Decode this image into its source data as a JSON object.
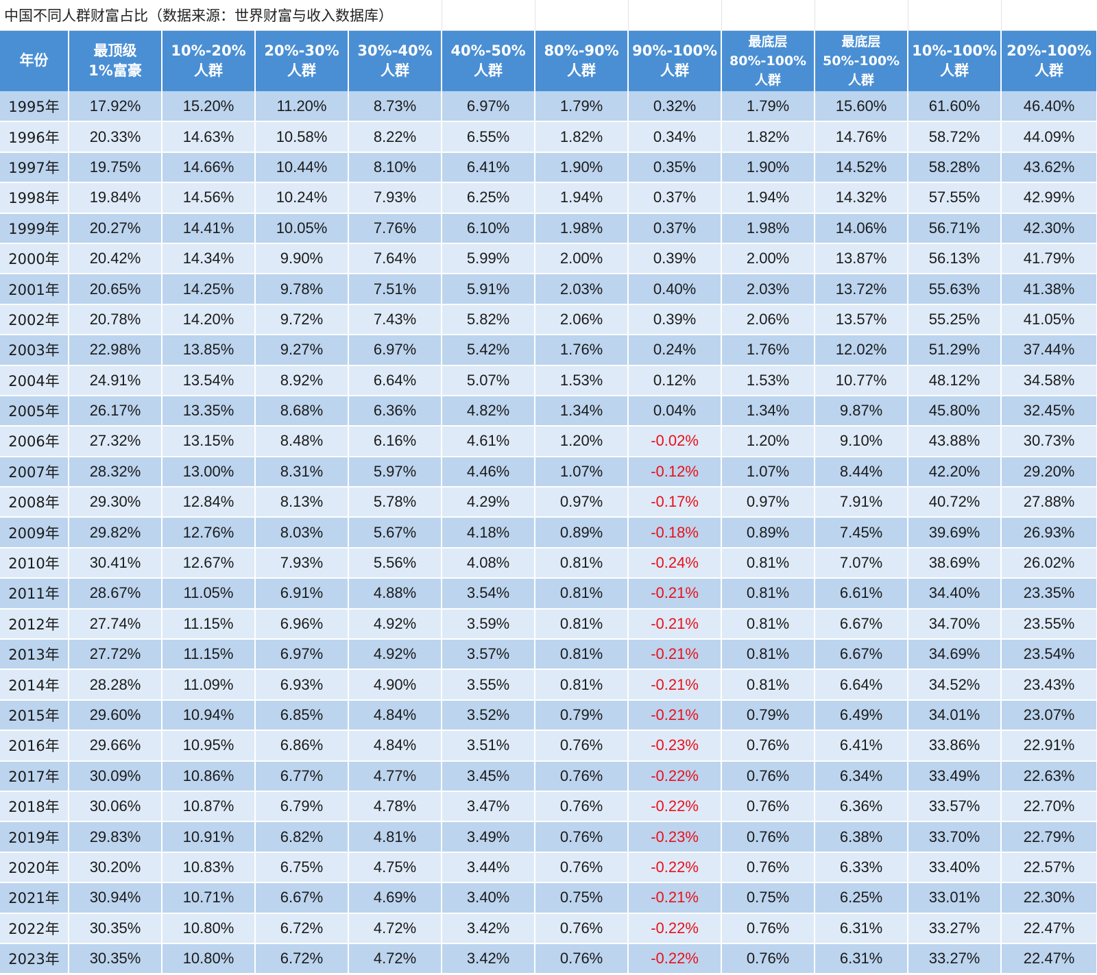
{
  "title": "中国不同人群财富占比（数据来源：世界财富与收入数据库）",
  "chart_data": {
    "type": "table",
    "title": "中国不同人群财富占比（数据来源：世界财富与收入数据库）",
    "columns": [
      {
        "key": "year",
        "label_lines": [
          "年份"
        ]
      },
      {
        "key": "top1",
        "label_lines": [
          "最顶级",
          "1%富豪"
        ]
      },
      {
        "key": "p10_20",
        "label_lines": [
          "10%-20%",
          "人群"
        ]
      },
      {
        "key": "p20_30",
        "label_lines": [
          "20%-30%",
          "人群"
        ]
      },
      {
        "key": "p30_40",
        "label_lines": [
          "30%-40%",
          "人群"
        ]
      },
      {
        "key": "p40_50",
        "label_lines": [
          "40%-50%",
          "人群"
        ]
      },
      {
        "key": "p80_90",
        "label_lines": [
          "80%-90%",
          "人群"
        ]
      },
      {
        "key": "p90_100",
        "label_lines": [
          "90%-100%",
          "人群"
        ]
      },
      {
        "key": "bottom80_100",
        "label_lines": [
          "最底层",
          "80%-100%",
          "人群"
        ]
      },
      {
        "key": "bottom50_100",
        "label_lines": [
          "最底层",
          "50%-100%",
          "人群"
        ]
      },
      {
        "key": "p10_100",
        "label_lines": [
          "10%-100%",
          "人群"
        ]
      },
      {
        "key": "p20_100",
        "label_lines": [
          "20%-100%",
          "人群"
        ]
      }
    ],
    "rows": [
      [
        "1995年",
        "17.92%",
        "15.20%",
        "11.20%",
        "8.73%",
        "6.97%",
        "1.79%",
        "0.32%",
        "1.79%",
        "15.60%",
        "61.60%",
        "46.40%"
      ],
      [
        "1996年",
        "20.33%",
        "14.63%",
        "10.58%",
        "8.22%",
        "6.55%",
        "1.82%",
        "0.34%",
        "1.82%",
        "14.76%",
        "58.72%",
        "44.09%"
      ],
      [
        "1997年",
        "19.75%",
        "14.66%",
        "10.44%",
        "8.10%",
        "6.41%",
        "1.90%",
        "0.35%",
        "1.90%",
        "14.52%",
        "58.28%",
        "43.62%"
      ],
      [
        "1998年",
        "19.84%",
        "14.56%",
        "10.24%",
        "7.93%",
        "6.25%",
        "1.94%",
        "0.37%",
        "1.94%",
        "14.32%",
        "57.55%",
        "42.99%"
      ],
      [
        "1999年",
        "20.27%",
        "14.41%",
        "10.05%",
        "7.76%",
        "6.10%",
        "1.98%",
        "0.37%",
        "1.98%",
        "14.06%",
        "56.71%",
        "42.30%"
      ],
      [
        "2000年",
        "20.42%",
        "14.34%",
        "9.90%",
        "7.64%",
        "5.99%",
        "2.00%",
        "0.39%",
        "2.00%",
        "13.87%",
        "56.13%",
        "41.79%"
      ],
      [
        "2001年",
        "20.65%",
        "14.25%",
        "9.78%",
        "7.51%",
        "5.91%",
        "2.03%",
        "0.40%",
        "2.03%",
        "13.72%",
        "55.63%",
        "41.38%"
      ],
      [
        "2002年",
        "20.78%",
        "14.20%",
        "9.72%",
        "7.43%",
        "5.82%",
        "2.06%",
        "0.39%",
        "2.06%",
        "13.57%",
        "55.25%",
        "41.05%"
      ],
      [
        "2003年",
        "22.98%",
        "13.85%",
        "9.27%",
        "6.97%",
        "5.42%",
        "1.76%",
        "0.24%",
        "1.76%",
        "12.02%",
        "51.29%",
        "37.44%"
      ],
      [
        "2004年",
        "24.91%",
        "13.54%",
        "8.92%",
        "6.64%",
        "5.07%",
        "1.53%",
        "0.12%",
        "1.53%",
        "10.77%",
        "48.12%",
        "34.58%"
      ],
      [
        "2005年",
        "26.17%",
        "13.35%",
        "8.68%",
        "6.36%",
        "4.82%",
        "1.34%",
        "0.04%",
        "1.34%",
        "9.87%",
        "45.80%",
        "32.45%"
      ],
      [
        "2006年",
        "27.32%",
        "13.15%",
        "8.48%",
        "6.16%",
        "4.61%",
        "1.20%",
        "-0.02%",
        "1.20%",
        "9.10%",
        "43.88%",
        "30.73%"
      ],
      [
        "2007年",
        "28.32%",
        "13.00%",
        "8.31%",
        "5.97%",
        "4.46%",
        "1.07%",
        "-0.12%",
        "1.07%",
        "8.44%",
        "42.20%",
        "29.20%"
      ],
      [
        "2008年",
        "29.30%",
        "12.84%",
        "8.13%",
        "5.78%",
        "4.29%",
        "0.97%",
        "-0.17%",
        "0.97%",
        "7.91%",
        "40.72%",
        "27.88%"
      ],
      [
        "2009年",
        "29.82%",
        "12.76%",
        "8.03%",
        "5.67%",
        "4.18%",
        "0.89%",
        "-0.18%",
        "0.89%",
        "7.45%",
        "39.69%",
        "26.93%"
      ],
      [
        "2010年",
        "30.41%",
        "12.67%",
        "7.93%",
        "5.56%",
        "4.08%",
        "0.81%",
        "-0.24%",
        "0.81%",
        "7.07%",
        "38.69%",
        "26.02%"
      ],
      [
        "2011年",
        "28.67%",
        "11.05%",
        "6.91%",
        "4.88%",
        "3.54%",
        "0.81%",
        "-0.21%",
        "0.81%",
        "6.61%",
        "34.40%",
        "23.35%"
      ],
      [
        "2012年",
        "27.74%",
        "11.15%",
        "6.96%",
        "4.92%",
        "3.59%",
        "0.81%",
        "-0.21%",
        "0.81%",
        "6.67%",
        "34.70%",
        "23.55%"
      ],
      [
        "2013年",
        "27.72%",
        "11.15%",
        "6.97%",
        "4.92%",
        "3.57%",
        "0.81%",
        "-0.21%",
        "0.81%",
        "6.67%",
        "34.69%",
        "23.54%"
      ],
      [
        "2014年",
        "28.28%",
        "11.09%",
        "6.93%",
        "4.90%",
        "3.55%",
        "0.81%",
        "-0.21%",
        "0.81%",
        "6.64%",
        "34.52%",
        "23.43%"
      ],
      [
        "2015年",
        "29.60%",
        "10.94%",
        "6.85%",
        "4.84%",
        "3.52%",
        "0.79%",
        "-0.21%",
        "0.79%",
        "6.49%",
        "34.01%",
        "23.07%"
      ],
      [
        "2016年",
        "29.66%",
        "10.95%",
        "6.86%",
        "4.84%",
        "3.51%",
        "0.76%",
        "-0.23%",
        "0.76%",
        "6.41%",
        "33.86%",
        "22.91%"
      ],
      [
        "2017年",
        "30.09%",
        "10.86%",
        "6.77%",
        "4.77%",
        "3.45%",
        "0.76%",
        "-0.22%",
        "0.76%",
        "6.34%",
        "33.49%",
        "22.63%"
      ],
      [
        "2018年",
        "30.06%",
        "10.87%",
        "6.79%",
        "4.78%",
        "3.47%",
        "0.76%",
        "-0.22%",
        "0.76%",
        "6.36%",
        "33.57%",
        "22.70%"
      ],
      [
        "2019年",
        "29.83%",
        "10.91%",
        "6.82%",
        "4.81%",
        "3.49%",
        "0.76%",
        "-0.23%",
        "0.76%",
        "6.38%",
        "33.70%",
        "22.79%"
      ],
      [
        "2020年",
        "30.20%",
        "10.83%",
        "6.75%",
        "4.75%",
        "3.44%",
        "0.76%",
        "-0.22%",
        "0.76%",
        "6.33%",
        "33.40%",
        "22.57%"
      ],
      [
        "2021年",
        "30.94%",
        "10.71%",
        "6.67%",
        "4.69%",
        "3.40%",
        "0.75%",
        "-0.21%",
        "0.75%",
        "6.25%",
        "33.01%",
        "22.30%"
      ],
      [
        "2022年",
        "30.35%",
        "10.80%",
        "6.72%",
        "4.72%",
        "3.42%",
        "0.76%",
        "-0.22%",
        "0.76%",
        "6.31%",
        "33.27%",
        "22.47%"
      ],
      [
        "2023年",
        "30.35%",
        "10.80%",
        "6.72%",
        "4.72%",
        "3.42%",
        "0.76%",
        "-0.22%",
        "0.76%",
        "6.31%",
        "33.27%",
        "22.47%"
      ]
    ]
  },
  "colors": {
    "header_bg": "#4a8fd4",
    "header_text": "#ffffff",
    "row_dark": "#bcd4ee",
    "row_light": "#deeaf7",
    "negative_text": "#e8101a",
    "text": "#1a1a1a"
  }
}
